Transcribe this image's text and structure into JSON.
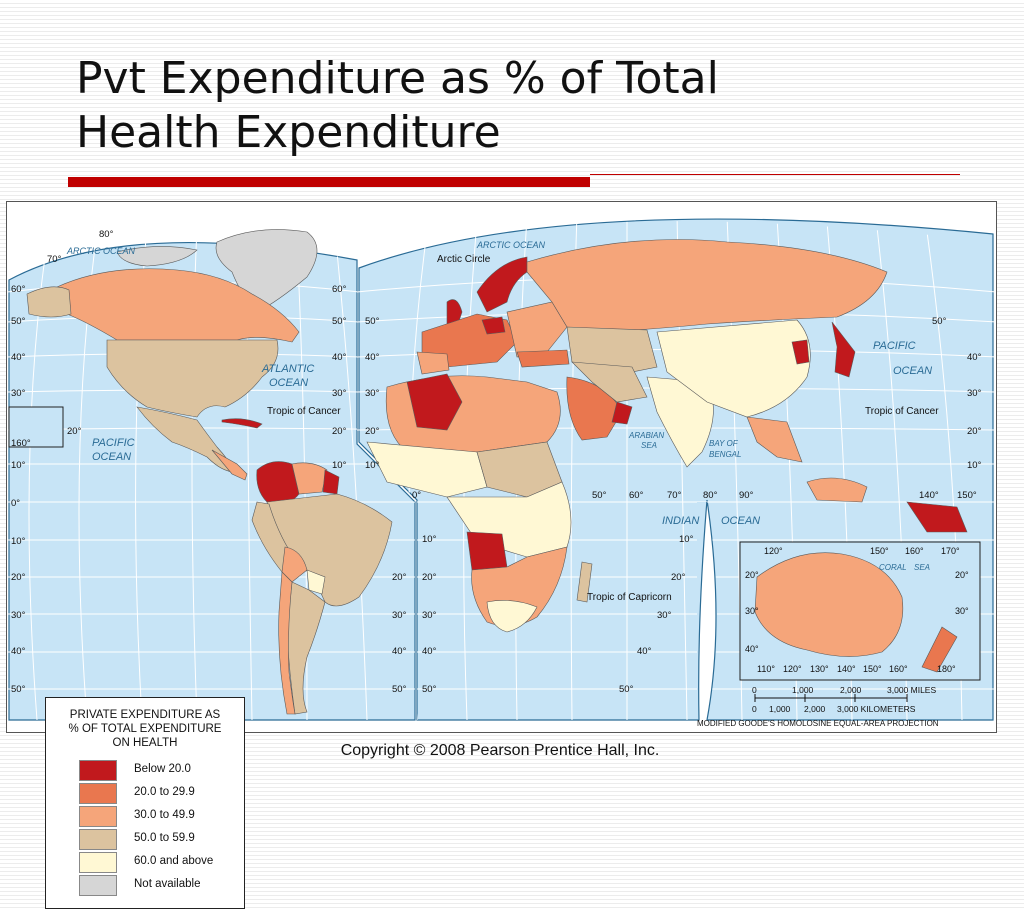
{
  "title": {
    "line1": "Pvt Expenditure as % of Total",
    "line2": "Health Expenditure"
  },
  "copyright": "Copyright © 2008 Pearson Prentice Hall, Inc.",
  "colors": {
    "ocean": "#c7e4f6",
    "below20": "#c1191d",
    "c20_29": "#e9774f",
    "c30_49": "#f5a57a",
    "c50_59": "#dcc39f",
    "c60plus": "#fff8d4",
    "na": "#d6d6d6",
    "grid": "#ffffff"
  },
  "legend": {
    "title_lines": [
      "PRIVATE EXPENDITURE AS",
      "% OF TOTAL EXPENDITURE",
      "ON  HEALTH"
    ],
    "items": [
      {
        "label": "Below 20.0",
        "color": "#c1191d"
      },
      {
        "label": "20.0 to 29.9",
        "color": "#e9774f"
      },
      {
        "label": "30.0 to 49.9",
        "color": "#f5a57a"
      },
      {
        "label": "50.0 to 59.9",
        "color": "#dcc39f"
      },
      {
        "label": "60.0 and above",
        "color": "#fff8d4"
      },
      {
        "label": "Not available",
        "color": "#d6d6d6"
      }
    ]
  },
  "labels": {
    "arctic_ocean": "ARCTIC OCEAN",
    "arctic_circle": "Arctic Circle",
    "atlantic_ocean_1": "ATLANTIC",
    "atlantic_ocean_2": "OCEAN",
    "pacific_ocean_1": "PACIFIC",
    "pacific_ocean_2": "OCEAN",
    "indian_ocean_1": "INDIAN",
    "indian_ocean_2": "OCEAN",
    "arabian_sea_1": "ARABIAN",
    "arabian_sea_2": "SEA",
    "bay_of_bengal_1": "BAY OF",
    "bay_of_bengal_2": "BENGAL",
    "coral_sea_1": "CORAL",
    "coral_sea_2": "SEA",
    "tropic_of_cancer": "Tropic of Cancer",
    "tropic_of_capricorn": "Tropic of Capricorn",
    "scale_miles": "3,000 MILES",
    "scale_km": "3,000 KILOMETERS",
    "projection": "MODIFIED GOODE'S HOMOLOSINE EQUAL-AREA PROJECTION"
  },
  "scale": {
    "miles_ticks": [
      "0",
      "1,000",
      "2,000"
    ],
    "km_ticks": [
      "0",
      "1,000",
      "2,000"
    ]
  },
  "lat_labels": {
    "left": [
      "80°",
      "70°",
      "60°",
      "50°",
      "40°",
      "30°",
      "20°",
      "160°",
      "10°",
      "0°",
      "10°",
      "20°",
      "30°",
      "40°",
      "50°"
    ],
    "mid_left": [
      "60°",
      "50°",
      "40°",
      "30°",
      "20°",
      "10°",
      "20°",
      "30°",
      "40°",
      "50°"
    ],
    "mid_right": [
      "50°",
      "40°",
      "30°",
      "20°",
      "10°",
      "0°",
      "10°",
      "20°",
      "30°",
      "40°",
      "50°"
    ],
    "east": [
      "40°",
      "30°",
      "20°",
      "10°",
      "0°",
      "10°",
      "20°",
      "30°",
      "40°",
      "50°",
      "50°",
      "40°",
      "30°",
      "20°",
      "10°"
    ],
    "right": [
      "50°",
      "40°",
      "30°",
      "20°",
      "10°"
    ],
    "lon_row": [
      "50°",
      "60°",
      "70°",
      "80°",
      "90°",
      "140°",
      "150°"
    ],
    "inset_top": [
      "120°",
      "150°",
      "160°",
      "170°"
    ],
    "inset_left": [
      "20°",
      "30°",
      "40°"
    ],
    "inset_right": [
      "20°",
      "30°"
    ],
    "inset_bottom": [
      "110°",
      "120°",
      "130°",
      "140°",
      "150°",
      "160°",
      "180°"
    ]
  }
}
